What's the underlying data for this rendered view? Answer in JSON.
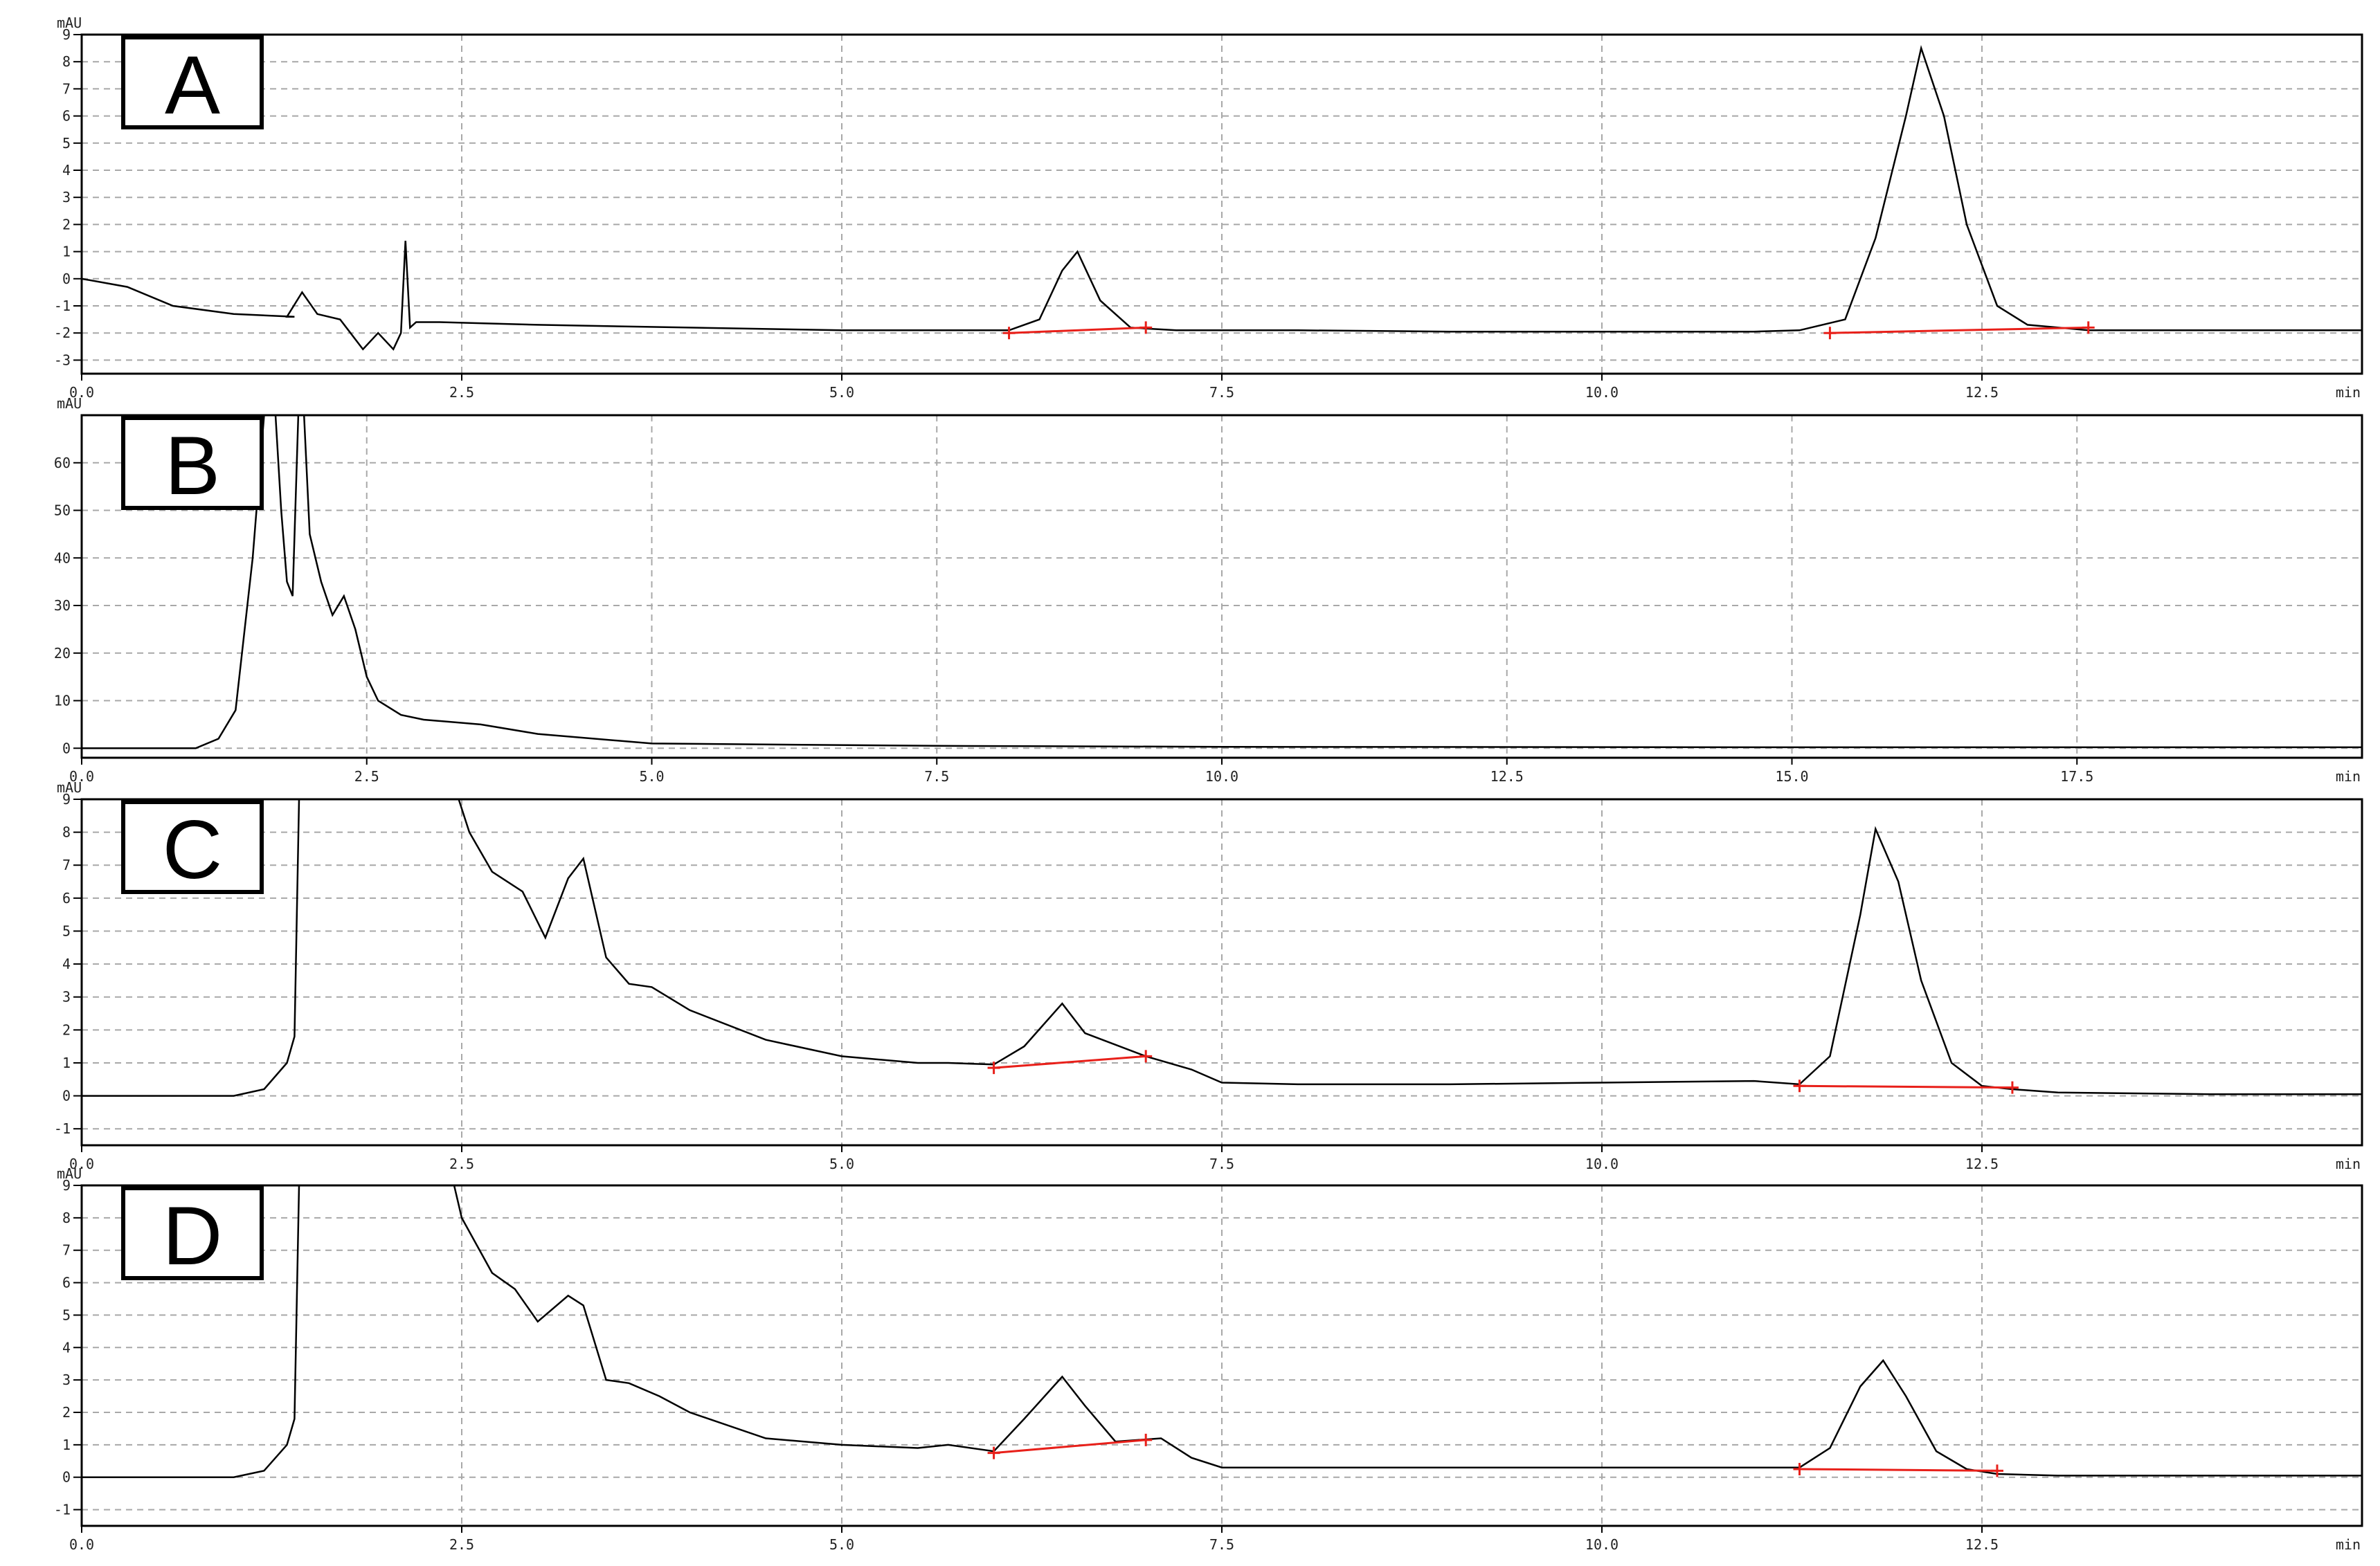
{
  "chart_data": [
    {
      "type": "line",
      "panel_label": "A",
      "ylabel": "mAU",
      "xlabel": "min",
      "xlim": [
        0,
        15
      ],
      "ylim": [
        -3.5,
        9
      ],
      "xticks": [
        0,
        2.5,
        5,
        7.5,
        10,
        12.5
      ],
      "xtick_labels": [
        "0.0",
        "2.5",
        "5.0",
        "7.5",
        "10.0",
        "12.5"
      ],
      "yticks": [
        -3,
        -2,
        -1,
        0,
        1,
        2,
        3,
        4,
        5,
        6,
        7,
        8,
        9
      ],
      "ytick_labels": [
        "-3",
        "-2",
        "-1",
        "0",
        "1",
        "2",
        "3",
        "4",
        "5",
        "6",
        "7",
        "8",
        "9"
      ],
      "grid": true,
      "series": [
        {
          "x": [
            0,
            0.3,
            0.6,
            1.0,
            1.4,
            1.35,
            1.45,
            1.55,
            1.7,
            1.85,
            1.95,
            2.05,
            2.1,
            2.13,
            2.16,
            2.2,
            2.35,
            3,
            4,
            5,
            6,
            6.1,
            6.3,
            6.45,
            6.55,
            6.7,
            6.9,
            7.2,
            8,
            9,
            10,
            11,
            11.3,
            11.6,
            11.8,
            12.0,
            12.1,
            12.25,
            12.4,
            12.6,
            12.8,
            13.2,
            14,
            15
          ],
          "y": [
            0.0,
            -0.3,
            -1.0,
            -1.3,
            -1.4,
            -1.4,
            -0.5,
            -1.3,
            -1.5,
            -2.6,
            -2.0,
            -2.6,
            -2.0,
            1.4,
            -1.8,
            -1.6,
            -1.6,
            -1.7,
            -1.8,
            -1.9,
            -1.9,
            -1.9,
            -1.5,
            0.3,
            1.0,
            -0.8,
            -1.8,
            -1.9,
            -1.9,
            -1.95,
            -1.95,
            -1.95,
            -1.9,
            -1.5,
            1.5,
            6.0,
            8.5,
            6.0,
            2.0,
            -1.0,
            -1.7,
            -1.9,
            -1.9,
            -1.9
          ]
        }
      ],
      "integrations": [
        {
          "x": [
            6.1,
            7.0
          ],
          "y": [
            -2.0,
            -1.8
          ]
        },
        {
          "x": [
            11.5,
            13.2
          ],
          "y": [
            -2.0,
            -1.8
          ]
        }
      ]
    },
    {
      "type": "line",
      "panel_label": "B",
      "ylabel": "mAU",
      "xlabel": "min",
      "xlim": [
        0,
        20
      ],
      "ylim": [
        -2,
        70
      ],
      "xticks": [
        0,
        2.5,
        5,
        7.5,
        10,
        12.5,
        15,
        17.5
      ],
      "xtick_labels": [
        "0.0",
        "2.5",
        "5.0",
        "7.5",
        "10.0",
        "12.5",
        "15.0",
        "17.5"
      ],
      "yticks": [
        0,
        10,
        20,
        30,
        40,
        50,
        60
      ],
      "ytick_labels": [
        "0",
        "10",
        "20",
        "30",
        "40",
        "50",
        "60"
      ],
      "grid": true,
      "series": [
        {
          "x": [
            0,
            1.0,
            1.2,
            1.35,
            1.5,
            1.6,
            1.7,
            1.75,
            1.8,
            1.85,
            1.9,
            1.95,
            2.0,
            2.1,
            2.2,
            2.3,
            2.4,
            2.5,
            2.6,
            2.8,
            3.0,
            3.5,
            4.0,
            5.0,
            7.5,
            10,
            15,
            20
          ],
          "y": [
            0,
            0,
            2,
            8,
            40,
            70,
            70,
            50,
            35,
            32,
            70,
            70,
            45,
            35,
            28,
            32,
            25,
            15,
            10,
            7,
            6,
            5,
            3,
            1,
            0.5,
            0.3,
            0.2,
            0.2
          ]
        }
      ],
      "integrations": []
    },
    {
      "type": "line",
      "panel_label": "C",
      "ylabel": "mAU",
      "xlabel": "min",
      "xlim": [
        0,
        15
      ],
      "ylim": [
        -1.5,
        9
      ],
      "xticks": [
        0,
        2.5,
        5,
        7.5,
        10,
        12.5
      ],
      "xtick_labels": [
        "0.0",
        "2.5",
        "5.0",
        "7.5",
        "10.0",
        "12.5"
      ],
      "yticks": [
        -1,
        0,
        1,
        2,
        3,
        4,
        5,
        6,
        7,
        8,
        9
      ],
      "ytick_labels": [
        "-1",
        "0",
        "1",
        "2",
        "3",
        "4",
        "5",
        "6",
        "7",
        "8",
        "9"
      ],
      "grid": true,
      "series": [
        {
          "x": [
            0,
            1.0,
            1.2,
            1.35,
            1.4,
            1.43,
            2.48,
            2.55,
            2.7,
            2.9,
            3.05,
            3.2,
            3.3,
            3.45,
            3.6,
            3.75,
            4.0,
            4.5,
            5.0,
            5.5,
            5.7,
            6.0,
            6.2,
            6.45,
            6.6,
            7.0,
            7.3,
            7.5,
            8,
            9,
            10,
            11,
            11.3,
            11.5,
            11.7,
            11.8,
            11.95,
            12.1,
            12.3,
            12.5,
            12.7,
            13,
            14,
            15
          ],
          "y": [
            0,
            0,
            0.2,
            1.0,
            1.8,
            9,
            9,
            8.0,
            6.8,
            6.2,
            4.8,
            6.6,
            7.2,
            4.2,
            3.4,
            3.3,
            2.6,
            1.7,
            1.2,
            1.0,
            1.0,
            0.95,
            1.5,
            2.8,
            1.9,
            1.2,
            0.8,
            0.4,
            0.35,
            0.35,
            0.4,
            0.45,
            0.35,
            1.2,
            5.5,
            8.1,
            6.5,
            3.5,
            1.0,
            0.3,
            0.2,
            0.1,
            0.05,
            0.05
          ]
        }
      ],
      "integrations": [
        {
          "x": [
            6.0,
            7.0
          ],
          "y": [
            0.85,
            1.2
          ]
        },
        {
          "x": [
            11.3,
            12.7
          ],
          "y": [
            0.3,
            0.25
          ]
        }
      ]
    },
    {
      "type": "line",
      "panel_label": "D",
      "ylabel": "mAU",
      "xlabel": "min",
      "xlim": [
        0,
        15
      ],
      "ylim": [
        -1.5,
        9
      ],
      "xticks": [
        0,
        2.5,
        5,
        7.5,
        10,
        12.5
      ],
      "xtick_labels": [
        "0.0",
        "2.5",
        "5.0",
        "7.5",
        "10.0",
        "12.5"
      ],
      "yticks": [
        -1,
        0,
        1,
        2,
        3,
        4,
        5,
        6,
        7,
        8,
        9
      ],
      "ytick_labels": [
        "-1",
        "0",
        "1",
        "2",
        "3",
        "4",
        "5",
        "6",
        "7",
        "8",
        "9"
      ],
      "grid": true,
      "series": [
        {
          "x": [
            0,
            1.0,
            1.2,
            1.35,
            1.4,
            1.43,
            2.45,
            2.5,
            2.7,
            2.85,
            3.0,
            3.2,
            3.3,
            3.45,
            3.6,
            3.8,
            4.0,
            4.5,
            5.0,
            5.5,
            5.7,
            6.0,
            6.2,
            6.45,
            6.6,
            6.8,
            7.1,
            7.3,
            7.5,
            8,
            9,
            10,
            11,
            11.3,
            11.5,
            11.7,
            11.85,
            12.0,
            12.2,
            12.4,
            12.6,
            13,
            14,
            15
          ],
          "y": [
            0,
            0,
            0.2,
            1.0,
            1.8,
            9,
            9,
            8.0,
            6.3,
            5.8,
            4.8,
            5.6,
            5.3,
            3.0,
            2.9,
            2.5,
            2.0,
            1.2,
            1.0,
            0.9,
            1.0,
            0.8,
            1.8,
            3.1,
            2.2,
            1.1,
            1.2,
            0.6,
            0.3,
            0.3,
            0.3,
            0.3,
            0.3,
            0.3,
            0.9,
            2.8,
            3.6,
            2.5,
            0.8,
            0.25,
            0.1,
            0.05,
            0.05,
            0.05
          ]
        }
      ],
      "integrations": [
        {
          "x": [
            6.0,
            7.0
          ],
          "y": [
            0.75,
            1.15
          ]
        },
        {
          "x": [
            11.3,
            12.6
          ],
          "y": [
            0.25,
            0.2
          ]
        }
      ]
    }
  ]
}
